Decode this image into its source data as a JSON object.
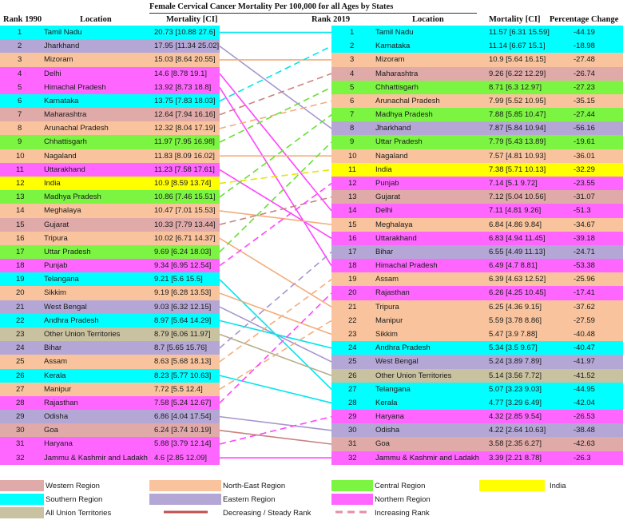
{
  "title": "Female Cervical Cancer Mortality Per 100,000 for all Ages by States",
  "headers": {
    "rank1990": "Rank 1990",
    "location": "Location",
    "mortality": "Mortality [CI]",
    "rank2019": "Rank 2019",
    "location2": "Location",
    "mortality2": "Mortality [CI]",
    "pct": "Percentage Change"
  },
  "colors": {
    "Western": "#e0aaa8",
    "Southern": "#00ffff",
    "North-East": "#f9c49d",
    "Eastern": "#b4a7d6",
    "Central": "#7cf542",
    "Northern": "#ff66ff",
    "India": "#ffff00",
    "UT": "#c9c2a0"
  },
  "legend": {
    "western": "Western Region",
    "southern": "Southern Region",
    "ut": "All Union Territories",
    "northeast": "North-East Region",
    "eastern": "Eastern Region",
    "central": "Central Region",
    "northern": "Northern Region",
    "india": "India",
    "decreasing": "Decreasing / Steady Rank",
    "increasing": "Increasing  Rank"
  },
  "chart_data": {
    "type": "table",
    "title": "Female Cervical Cancer Mortality Per 100,000 for all Ages by States",
    "rows1990": [
      {
        "rank": "1",
        "location": "Tamil Nadu",
        "mortality": "20.73 [10.88  27.6]",
        "region": "Southern"
      },
      {
        "rank": "2",
        "location": "Jharkhand",
        "mortality": "17.95 [11.34  25.02]",
        "region": "Eastern"
      },
      {
        "rank": "3",
        "location": "Mizoram",
        "mortality": "15.03 [8.64  20.55]",
        "region": "North-East"
      },
      {
        "rank": "4",
        "location": "Delhi",
        "mortality": "14.6 [8.78  19.1]",
        "region": "Northern"
      },
      {
        "rank": "5",
        "location": "Himachal Pradesh",
        "mortality": "13.92 [8.73  18.8]",
        "region": "Northern"
      },
      {
        "rank": "6",
        "location": "Karnataka",
        "mortality": "13.75 [7.83  18.03]",
        "region": "Southern"
      },
      {
        "rank": "7",
        "location": "Maharashtra",
        "mortality": "12.64 [7.94  16.16]",
        "region": "Western"
      },
      {
        "rank": "8",
        "location": "Arunachal Pradesh",
        "mortality": "12.32 [8.04  17.19]",
        "region": "North-East"
      },
      {
        "rank": "9",
        "location": "Chhattisgarh",
        "mortality": "11.97 [7.95  16.98]",
        "region": "Central"
      },
      {
        "rank": "10",
        "location": "Nagaland",
        "mortality": "11.83 [8.09  16.02]",
        "region": "North-East"
      },
      {
        "rank": "11",
        "location": "Uttarakhand",
        "mortality": "11.23 [7.58  17.61]",
        "region": "Northern"
      },
      {
        "rank": "12",
        "location": "India",
        "mortality": "10.9 [8.59  13.74]",
        "region": "India"
      },
      {
        "rank": "13",
        "location": "Madhya Pradesh",
        "mortality": "10.86 [7.46  15.51]",
        "region": "Central"
      },
      {
        "rank": "14",
        "location": "Meghalaya",
        "mortality": "10.47 [7.01  15.53]",
        "region": "North-East"
      },
      {
        "rank": "15",
        "location": "Gujarat",
        "mortality": "10.33 [7.79  13.44]",
        "region": "Western"
      },
      {
        "rank": "16",
        "location": "Tripura",
        "mortality": "10.02 [6.71  14.37]",
        "region": "North-East"
      },
      {
        "rank": "17",
        "location": "Uttar Pradesh",
        "mortality": "9.69 [6.24  18.03]",
        "region": "Central"
      },
      {
        "rank": "18",
        "location": "Punjab",
        "mortality": "9.34 [6.95  12.54]",
        "region": "Northern"
      },
      {
        "rank": "19",
        "location": "Telangana",
        "mortality": "9.21 [5.6  15.5]",
        "region": "Southern"
      },
      {
        "rank": "20",
        "location": "Sikkim",
        "mortality": "9.19 [6.28  13.53]",
        "region": "North-East"
      },
      {
        "rank": "21",
        "location": "West Bengal",
        "mortality": "9.03 [6.32  12.15]",
        "region": "Eastern"
      },
      {
        "rank": "22",
        "location": "Andhra Pradesh",
        "mortality": "8.97 [5.64  14.29]",
        "region": "Southern"
      },
      {
        "rank": "23",
        "location": "Other Union Territories",
        "mortality": "8.79 [6.06  11.97]",
        "region": "UT"
      },
      {
        "rank": "24",
        "location": "Bihar",
        "mortality": "8.7 [5.65  15.76]",
        "region": "Eastern"
      },
      {
        "rank": "25",
        "location": "Assam",
        "mortality": "8.63 [5.68  18.13]",
        "region": "North-East"
      },
      {
        "rank": "26",
        "location": "Kerala",
        "mortality": "8.23 [5.77  10.63]",
        "region": "Southern"
      },
      {
        "rank": "27",
        "location": "Manipur",
        "mortality": "7.72 [5.5  12.4]",
        "region": "North-East"
      },
      {
        "rank": "28",
        "location": "Rajasthan",
        "mortality": "7.58 [5.24  12.67]",
        "region": "Northern"
      },
      {
        "rank": "29",
        "location": "Odisha",
        "mortality": "6.86 [4.04  17.54]",
        "region": "Eastern"
      },
      {
        "rank": "30",
        "location": "Goa",
        "mortality": "6.24 [3.74  10.19]",
        "region": "Western"
      },
      {
        "rank": "31",
        "location": "Haryana",
        "mortality": "5.88 [3.79  12.14]",
        "region": "Northern"
      },
      {
        "rank": "32",
        "location": "Jammu & Kashmir and Ladakh",
        "mortality": "4.6 [2.85  12.09]",
        "region": "Northern"
      }
    ],
    "rows2019": [
      {
        "rank": "1",
        "location": "Tamil Nadu",
        "mortality": "11.57 [6.31  15.59]",
        "pct": "-44.19",
        "region": "Southern"
      },
      {
        "rank": "2",
        "location": "Karnataka",
        "mortality": "11.14 [6.67  15.1]",
        "pct": "-18.98",
        "region": "Southern"
      },
      {
        "rank": "3",
        "location": "Mizoram",
        "mortality": "10.9 [5.64  16.15]",
        "pct": "-27.48",
        "region": "North-East"
      },
      {
        "rank": "4",
        "location": "Maharashtra",
        "mortality": "9.26 [6.22  12.29]",
        "pct": "-26.74",
        "region": "Western"
      },
      {
        "rank": "5",
        "location": "Chhattisgarh",
        "mortality": "8.71 [6.3  12.97]",
        "pct": "-27.23",
        "region": "Central"
      },
      {
        "rank": "6",
        "location": "Arunachal Pradesh",
        "mortality": "7.99 [5.52  10.95]",
        "pct": "-35.15",
        "region": "North-East"
      },
      {
        "rank": "7",
        "location": "Madhya Pradesh",
        "mortality": "7.88 [5.85  10.47]",
        "pct": "-27.44",
        "region": "Central"
      },
      {
        "rank": "8",
        "location": "Jharkhand",
        "mortality": "7.87 [5.84  10.94]",
        "pct": "-56.16",
        "region": "Eastern"
      },
      {
        "rank": "9",
        "location": "Uttar Pradesh",
        "mortality": "7.79 [5.43  13.89]",
        "pct": "-19.61",
        "region": "Central"
      },
      {
        "rank": "10",
        "location": "Nagaland",
        "mortality": "7.57 [4.81  10.93]",
        "pct": "-36.01",
        "region": "North-East"
      },
      {
        "rank": "11",
        "location": "India",
        "mortality": "7.38 [5.71  10.13]",
        "pct": "-32.29",
        "region": "India"
      },
      {
        "rank": "12",
        "location": "Punjab",
        "mortality": "7.14 [5.1  9.72]",
        "pct": "-23.55",
        "region": "Northern"
      },
      {
        "rank": "13",
        "location": "Gujarat",
        "mortality": "7.12 [5.04  10.56]",
        "pct": "-31.07",
        "region": "Western"
      },
      {
        "rank": "14",
        "location": "Delhi",
        "mortality": "7.11 [4.81  9.26]",
        "pct": "-51.3",
        "region": "Northern"
      },
      {
        "rank": "15",
        "location": "Meghalaya",
        "mortality": "6.84 [4.86  9.84]",
        "pct": "-34.67",
        "region": "North-East"
      },
      {
        "rank": "16",
        "location": "Uttarakhand",
        "mortality": "6.83 [4.94  11.45]",
        "pct": "-39.18",
        "region": "Northern"
      },
      {
        "rank": "17",
        "location": "Bihar",
        "mortality": "6.55 [4.49  11.13]",
        "pct": "-24.71",
        "region": "Eastern"
      },
      {
        "rank": "18",
        "location": "Himachal Pradesh",
        "mortality": "6.49 [4.7  8.81]",
        "pct": "-53.38",
        "region": "Northern"
      },
      {
        "rank": "19",
        "location": "Assam",
        "mortality": "6.39 [4.63  12.52]",
        "pct": "-25.96",
        "region": "North-East"
      },
      {
        "rank": "20",
        "location": "Rajasthan",
        "mortality": "6.26 [4.25  10.45]",
        "pct": "-17.41",
        "region": "Northern"
      },
      {
        "rank": "21",
        "location": "Tripura",
        "mortality": "6.25 [4.36  9.15]",
        "pct": "-37.62",
        "region": "North-East"
      },
      {
        "rank": "22",
        "location": "Manipur",
        "mortality": "5.59 [3.78  8.86]",
        "pct": "-27.59",
        "region": "North-East"
      },
      {
        "rank": "23",
        "location": "Sikkim",
        "mortality": "5.47 [3.9  7.88]",
        "pct": "-40.48",
        "region": "North-East"
      },
      {
        "rank": "24",
        "location": "Andhra Pradesh",
        "mortality": "5.34 [3.5  9.67]",
        "pct": "-40.47",
        "region": "Southern"
      },
      {
        "rank": "25",
        "location": "West Bengal",
        "mortality": "5.24 [3.89  7.89]",
        "pct": "-41.97",
        "region": "Eastern"
      },
      {
        "rank": "26",
        "location": "Other Union Territories",
        "mortality": "5.14 [3.56  7.72]",
        "pct": "-41.52",
        "region": "UT"
      },
      {
        "rank": "27",
        "location": "Telangana",
        "mortality": "5.07 [3.23  9.03]",
        "pct": "-44.95",
        "region": "Southern"
      },
      {
        "rank": "28",
        "location": "Kerala",
        "mortality": "4.77 [3.29  6.49]",
        "pct": "-42.04",
        "region": "Southern"
      },
      {
        "rank": "29",
        "location": "Haryana",
        "mortality": "4.32 [2.85  9.54]",
        "pct": "-26.53",
        "region": "Northern"
      },
      {
        "rank": "30",
        "location": "Odisha",
        "mortality": "4.22 [2.64  10.63]",
        "pct": "-38.48",
        "region": "Eastern"
      },
      {
        "rank": "31",
        "location": "Goa",
        "mortality": "3.58 [2.35  6.27]",
        "pct": "-42.63",
        "region": "Western"
      },
      {
        "rank": "32",
        "location": "Jammu & Kashmir and Ladakh",
        "mortality": "3.39 [2.21  8.78]",
        "pct": "-26.3",
        "region": "Northern"
      }
    ]
  }
}
